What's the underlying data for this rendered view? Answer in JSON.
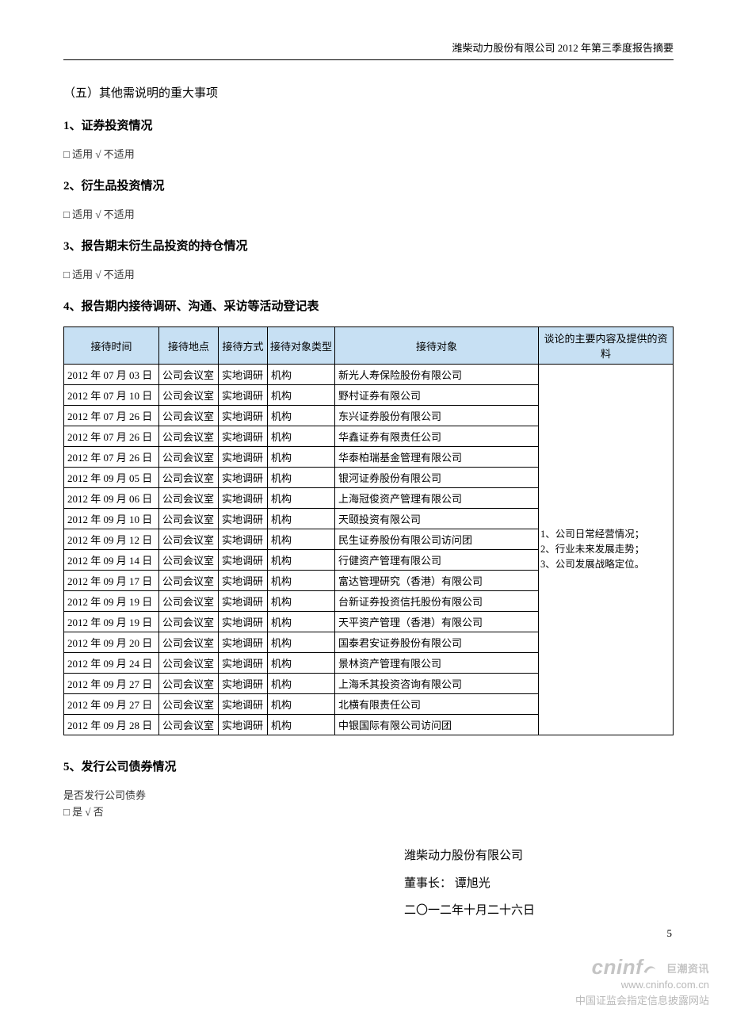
{
  "header": {
    "running": "潍柴动力股份有限公司 2012 年第三季度报告摘要"
  },
  "sections": {
    "s5_title": "（五）其他需说明的重大事项",
    "item1": {
      "title": "1、证券投资情况",
      "note_box": "□",
      "note_text": " 适用  √ 不适用"
    },
    "item2": {
      "title": "2、衍生品投资情况",
      "note_box": "□",
      "note_text": " 适用  √ 不适用"
    },
    "item3": {
      "title": "3、报告期末衍生品投资的持仓情况",
      "note_box": "□",
      "note_text": " 适用  √ 不适用"
    },
    "item4": {
      "title": "4、报告期内接待调研、沟通、采访等活动登记表"
    },
    "item5": {
      "title": "5、发行公司债券情况",
      "q": "是否发行公司债券",
      "note_box": "□",
      "note_text": " 是  √ 否"
    }
  },
  "table": {
    "header_bg": "#c7e0f3",
    "border_color": "#000000",
    "font_size": 13,
    "col_widths": [
      "120px",
      "75px",
      "62px",
      "85px",
      "auto",
      "170px"
    ],
    "columns": [
      "接待时间",
      "接待地点",
      "接待方式",
      "接待对象类型",
      "接待对象",
      "谈论的主要内容及提供的资料"
    ],
    "topic_lines": [
      "1、公司日常经营情况；",
      "2、行业未来发展走势；",
      "3、公司发展战略定位。"
    ],
    "rows": [
      {
        "date": "2012 年 07 月 03 日",
        "place": "公司会议室",
        "method": "实地调研",
        "type": "机构",
        "party": "新光人寿保险股份有限公司"
      },
      {
        "date": "2012 年 07 月 10 日",
        "place": "公司会议室",
        "method": "实地调研",
        "type": "机构",
        "party": "野村证券有限公司"
      },
      {
        "date": "2012 年 07 月 26 日",
        "place": "公司会议室",
        "method": "实地调研",
        "type": "机构",
        "party": "东兴证券股份有限公司"
      },
      {
        "date": "2012 年 07 月 26 日",
        "place": "公司会议室",
        "method": "实地调研",
        "type": "机构",
        "party": "华鑫证券有限责任公司"
      },
      {
        "date": "2012 年 07 月 26 日",
        "place": "公司会议室",
        "method": "实地调研",
        "type": "机构",
        "party": "华泰柏瑞基金管理有限公司"
      },
      {
        "date": "2012 年 09 月 05 日",
        "place": "公司会议室",
        "method": "实地调研",
        "type": "机构",
        "party": "银河证券股份有限公司"
      },
      {
        "date": "2012 年 09 月 06 日",
        "place": "公司会议室",
        "method": "实地调研",
        "type": "机构",
        "party": "上海冠俊资产管理有限公司"
      },
      {
        "date": "2012 年 09 月 10 日",
        "place": "公司会议室",
        "method": "实地调研",
        "type": "机构",
        "party": "天颐投资有限公司"
      },
      {
        "date": "2012 年 09 月 12 日",
        "place": "公司会议室",
        "method": "实地调研",
        "type": "机构",
        "party": "民生证券股份有限公司访问团"
      },
      {
        "date": "2012 年 09 月 14 日",
        "place": "公司会议室",
        "method": "实地调研",
        "type": "机构",
        "party": "行健资产管理有限公司"
      },
      {
        "date": "2012 年 09 月 17 日",
        "place": "公司会议室",
        "method": "实地调研",
        "type": "机构",
        "party": "富达管理研究（香港）有限公司"
      },
      {
        "date": "2012 年 09 月 19 日",
        "place": "公司会议室",
        "method": "实地调研",
        "type": "机构",
        "party": "台新证券投资信托股份有限公司"
      },
      {
        "date": "2012 年 09 月 19 日",
        "place": "公司会议室",
        "method": "实地调研",
        "type": "机构",
        "party": "天平资产管理（香港）有限公司"
      },
      {
        "date": "2012 年 09 月 20 日",
        "place": "公司会议室",
        "method": "实地调研",
        "type": "机构",
        "party": "国泰君安证券股份有限公司"
      },
      {
        "date": "2012 年 09 月 24 日",
        "place": "公司会议室",
        "method": "实地调研",
        "type": "机构",
        "party": "景林资产管理有限公司"
      },
      {
        "date": "2012 年 09 月 27 日",
        "place": "公司会议室",
        "method": "实地调研",
        "type": "机构",
        "party": "上海禾其投资咨询有限公司"
      },
      {
        "date": "2012 年 09 月 27 日",
        "place": "公司会议室",
        "method": "实地调研",
        "type": "机构",
        "party": "北横有限责任公司"
      },
      {
        "date": "2012 年 09 月 28 日",
        "place": "公司会议室",
        "method": "实地调研",
        "type": "机构",
        "party": "中银国际有限公司访问团"
      }
    ]
  },
  "signature": {
    "company": "潍柴动力股份有限公司",
    "chair_line": "董事长：  谭旭光",
    "date": "二〇一二年十月二十六日"
  },
  "footer": {
    "page_num": "5",
    "wm_brand": "cninf",
    "wm_tag": "巨潮资讯",
    "wm_url": "www.cninfo.com.cn",
    "wm_desc": "中国证监会指定信息披露网站"
  }
}
